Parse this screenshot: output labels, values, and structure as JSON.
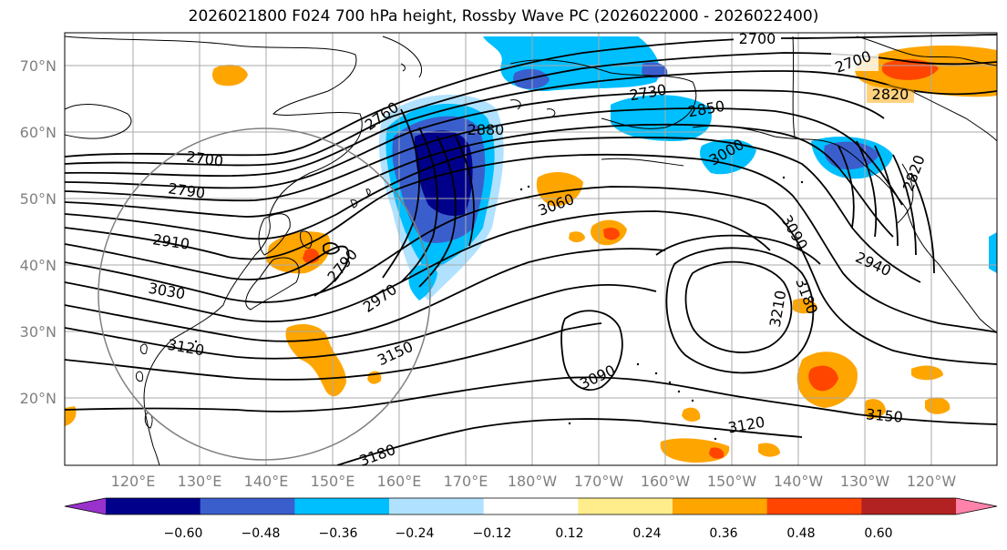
{
  "title": "2026021800 F024 700 hPa height, Rossby Wave PC (2026022000 - 2026022400)",
  "lat_labels": [
    "70°N",
    "60°N",
    "50°N",
    "40°N",
    "30°N",
    "20°N"
  ],
  "lon_labels": [
    "120°E",
    "130°E",
    "140°E",
    "150°E",
    "160°E",
    "170°E",
    "180°W",
    "170°W",
    "160°W",
    "150°W",
    "140°W",
    "130°W",
    "120°W"
  ],
  "contour_labels": [
    "2700",
    "2700",
    "2820",
    "2730",
    "2850",
    "2760",
    "2880",
    "3000",
    "2820",
    "2700",
    "2790",
    "2910",
    "3030",
    "2790",
    "2970",
    "3060",
    "3090",
    "2940",
    "3120",
    "3150",
    "3210",
    "3180",
    "3090",
    "3120",
    "3150",
    "3180"
  ],
  "colorbar": {
    "ticks": [
      "−0.60",
      "−0.48",
      "−0.36",
      "−0.24",
      "−0.12",
      "0.12",
      "0.24",
      "0.36",
      "0.48",
      "0.60"
    ],
    "colors": [
      "#9932cc",
      "#00008b",
      "#3a5fcd",
      "#00bfff",
      "#b0e2ff",
      "#ffffff",
      "#ffec8b",
      "#ffa500",
      "#ff4500",
      "#b22222",
      "#ff82ab"
    ]
  }
}
